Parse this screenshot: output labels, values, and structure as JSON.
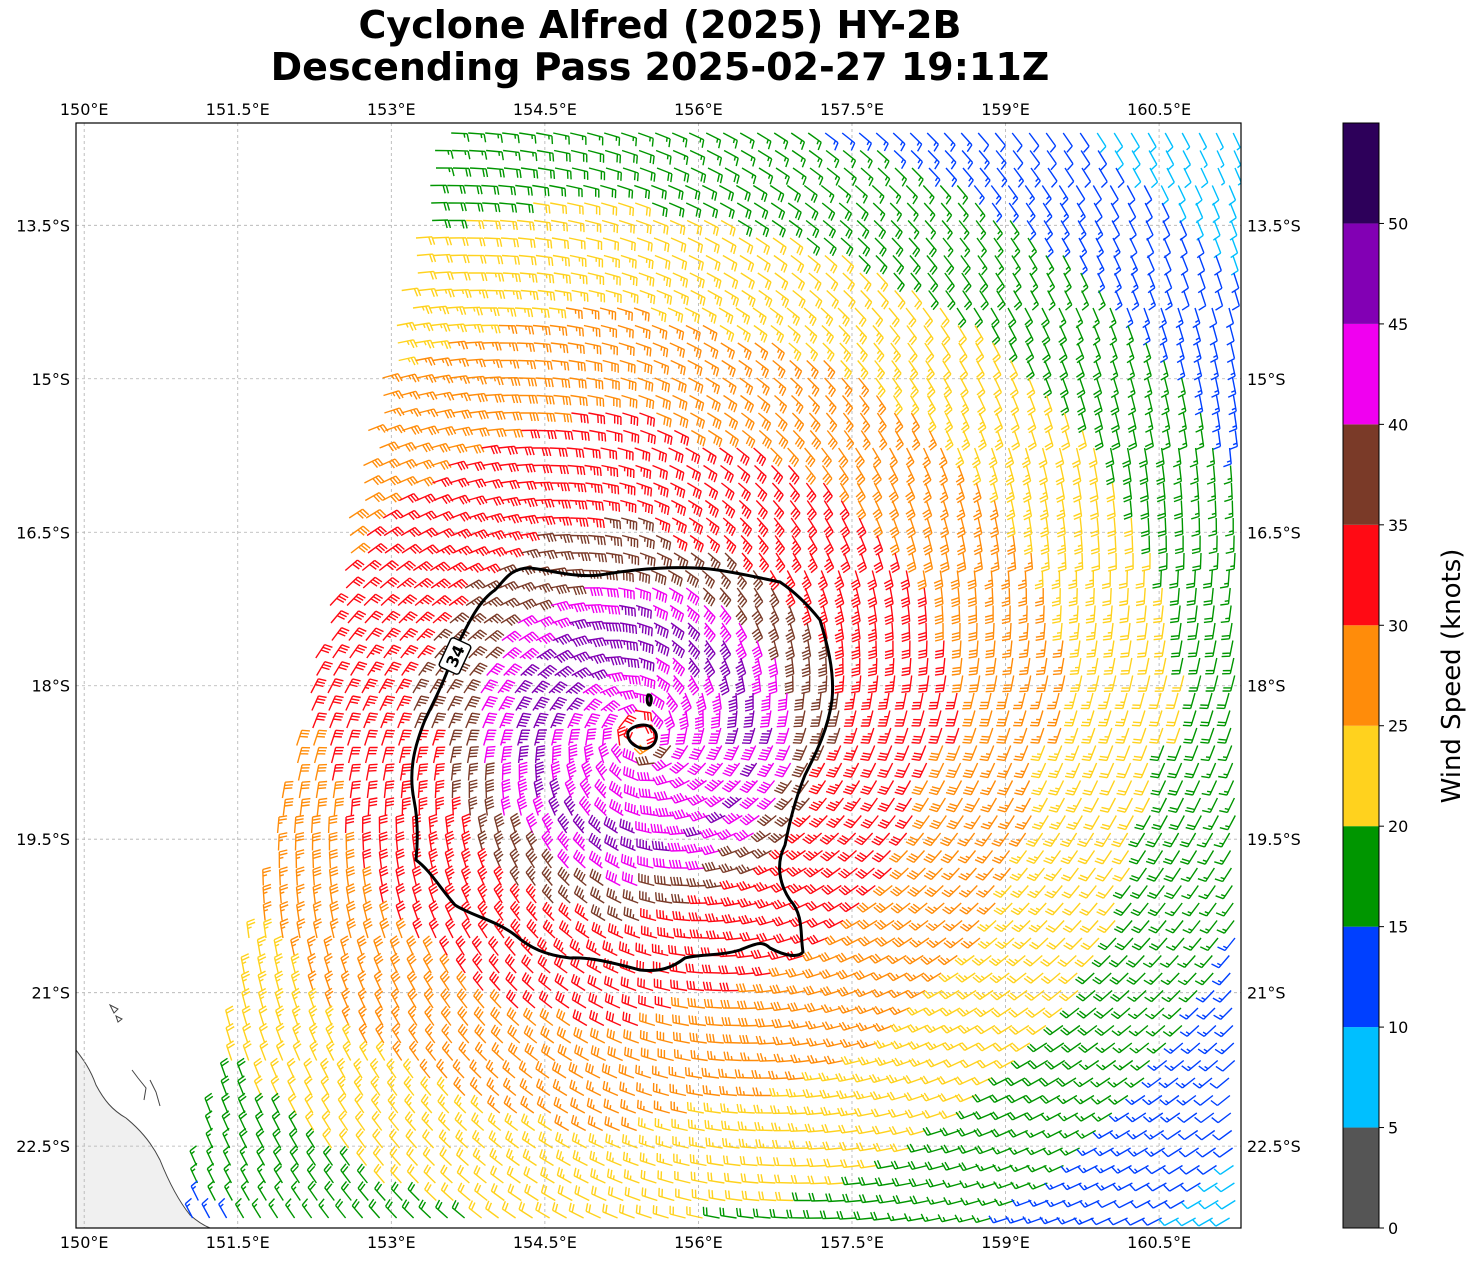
{
  "title": {
    "line1": "Cyclone Alfred (2025) HY-2B",
    "line2": "Descending Pass 2025-02-27 19:11Z"
  },
  "axes": {
    "lon_ticks": [
      "150°E",
      "151.5°E",
      "153°E",
      "154.5°E",
      "156°E",
      "157.5°E",
      "159°E",
      "160.5°E"
    ],
    "lat_ticks": [
      "13.5°S",
      "15°S",
      "16.5°S",
      "18°S",
      "19.5°S",
      "21°S",
      "22.5°S"
    ],
    "lon_values": [
      150,
      151.5,
      153,
      154.5,
      156,
      157.5,
      159,
      160.5
    ],
    "lat_values": [
      -13.5,
      -15,
      -16.5,
      -18,
      -19.5,
      -21,
      -22.5
    ],
    "lon_range": [
      149.92,
      161.3
    ],
    "lat_range": [
      -23.3,
      -12.5
    ]
  },
  "contour_label": "34",
  "colorbar": {
    "label": "Wind Speed (knots)",
    "tick_labels": [
      "0",
      "5",
      "10",
      "15",
      "20",
      "25",
      "30",
      "35",
      "40",
      "45",
      "50"
    ],
    "bins": [
      {
        "min": 0,
        "max": 5,
        "color": "#555555"
      },
      {
        "min": 5,
        "max": 10,
        "color": "#00bfff"
      },
      {
        "min": 10,
        "max": 15,
        "color": "#0040ff"
      },
      {
        "min": 15,
        "max": 20,
        "color": "#009600"
      },
      {
        "min": 20,
        "max": 25,
        "color": "#ffd21e"
      },
      {
        "min": 25,
        "max": 30,
        "color": "#ff8c0a"
      },
      {
        "min": 30,
        "max": 35,
        "color": "#ff0a14"
      },
      {
        "min": 35,
        "max": 40,
        "color": "#7a3a28"
      },
      {
        "min": 40,
        "max": 45,
        "color": "#f000f0"
      },
      {
        "min": 45,
        "max": 50,
        "color": "#8200b4"
      },
      {
        "min": 50,
        "max": 55,
        "color": "#2d005a"
      }
    ]
  }
}
